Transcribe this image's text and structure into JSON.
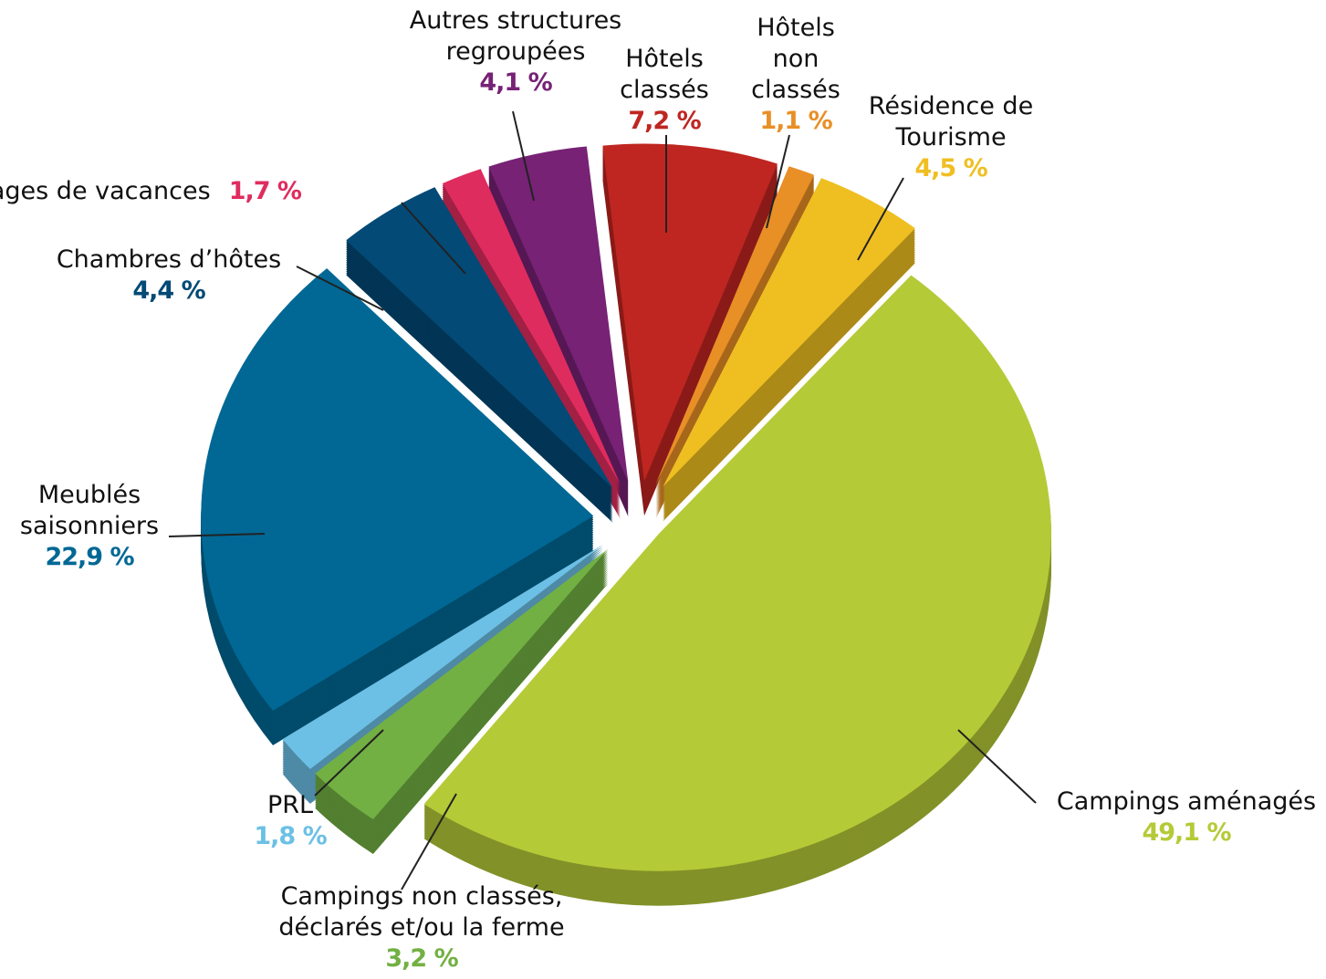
{
  "chart_data": {
    "type": "pie",
    "categories": [
      "Campings aménagés",
      "Campings non classés, déclarés et/ou la ferme",
      "PRL",
      "Meublés saisonniers",
      "Chambres d’hôtes",
      "Villages de vacances",
      "Autres structures regroupées",
      "Hôtels classés",
      "Hôtels non classés",
      "Résidence de Tourisme"
    ],
    "values": [
      49.1,
      3.2,
      1.8,
      22.9,
      4.4,
      1.7,
      4.1,
      7.2,
      1.1,
      4.5
    ],
    "value_labels": [
      "49,1 %",
      "3,2 %",
      "1,8 %",
      "22,9 %",
      "4,4 %",
      "1,7 %",
      "4,1 %",
      "7,2 %",
      "1,1 %",
      "4,5 %"
    ],
    "colors": [
      "#b5ca37",
      "#72b043",
      "#6cc0e5",
      "#016895",
      "#034a76",
      "#df2c5e",
      "#772275",
      "#bf2621",
      "#e88f26",
      "#efbf22"
    ]
  }
}
